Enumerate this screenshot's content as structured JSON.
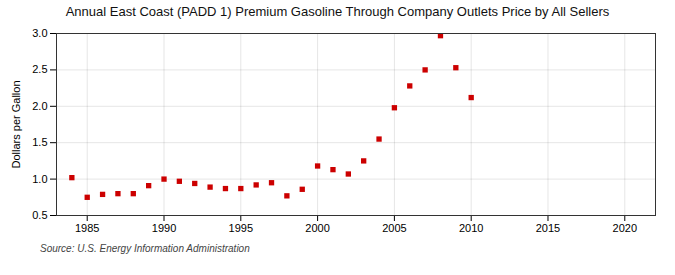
{
  "chart_data": {
    "type": "scatter",
    "title": "Annual East Coast (PADD 1) Premium Gasoline Through Company Outlets Price by All Sellers",
    "ylabel": "Dollars per Gallon",
    "caption": "Source: U.S. Energy Information Administration",
    "color": "#cc0000",
    "marker": "square",
    "grid": true,
    "xlim": [
      1983,
      2022
    ],
    "ylim": [
      0.5,
      3.0
    ],
    "xticks": [
      1985,
      1990,
      1995,
      2000,
      2005,
      2010,
      2015,
      2020
    ],
    "yticks": [
      0.5,
      {
        "value": 1.0,
        "label": "1.0"
      },
      1.5,
      {
        "value": 2.0,
        "label": "2.0"
      },
      2.5,
      {
        "value": 3.0,
        "label": "3.0"
      }
    ],
    "x": [
      1984,
      1985,
      1986,
      1987,
      1988,
      1989,
      1990,
      1991,
      1992,
      1993,
      1994,
      1995,
      1996,
      1997,
      1998,
      1999,
      2000,
      2001,
      2002,
      2003,
      2004,
      2005,
      2006,
      2007,
      2008,
      2009,
      2010
    ],
    "values": [
      1.02,
      0.75,
      0.79,
      0.8,
      0.8,
      0.91,
      1.0,
      0.97,
      0.94,
      0.89,
      0.87,
      0.87,
      0.92,
      0.95,
      0.77,
      0.86,
      1.18,
      1.13,
      1.07,
      1.25,
      1.55,
      1.98,
      2.28,
      2.5,
      2.97,
      2.53,
      2.12
    ]
  }
}
